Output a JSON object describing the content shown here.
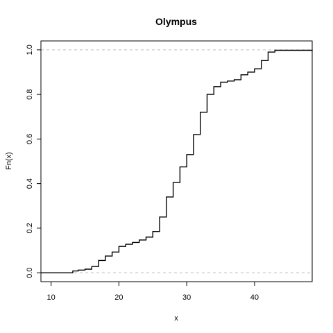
{
  "chart_data": {
    "type": "line",
    "title": "Olympus",
    "xlabel": "x",
    "ylabel": "Fn(x)",
    "xlim": [
      8.5,
      48.5
    ],
    "ylim": [
      -0.04,
      1.04
    ],
    "x_ticks": [
      "10",
      "20",
      "30",
      "40"
    ],
    "y_ticks": [
      "0.0",
      "0.2",
      "0.4",
      "0.6",
      "0.8",
      "1.0"
    ],
    "reference_lines": [
      0,
      1
    ],
    "series": [
      {
        "values": [
          [
            8.5,
            0.0
          ],
          [
            12.7,
            0.0
          ],
          [
            13.2,
            0.008
          ],
          [
            14.0,
            0.012
          ],
          [
            15.0,
            0.016
          ],
          [
            16.0,
            0.028
          ],
          [
            17.0,
            0.055
          ],
          [
            18.0,
            0.075
          ],
          [
            19.0,
            0.093
          ],
          [
            20.0,
            0.118
          ],
          [
            21.0,
            0.128
          ],
          [
            22.0,
            0.136
          ],
          [
            23.0,
            0.147
          ],
          [
            24.0,
            0.16
          ],
          [
            25.0,
            0.185
          ],
          [
            26.0,
            0.25
          ],
          [
            27.0,
            0.34
          ],
          [
            28.0,
            0.405
          ],
          [
            29.0,
            0.475
          ],
          [
            30.0,
            0.53
          ],
          [
            31.0,
            0.62
          ],
          [
            32.0,
            0.72
          ],
          [
            33.0,
            0.8
          ],
          [
            34.0,
            0.835
          ],
          [
            35.0,
            0.855
          ],
          [
            36.0,
            0.86
          ],
          [
            37.0,
            0.866
          ],
          [
            38.0,
            0.888
          ],
          [
            39.0,
            0.9
          ],
          [
            40.0,
            0.915
          ],
          [
            41.0,
            0.952
          ],
          [
            42.0,
            0.99
          ],
          [
            43.0,
            0.998
          ],
          [
            48.5,
            1.0
          ]
        ]
      }
    ],
    "grid": false
  }
}
